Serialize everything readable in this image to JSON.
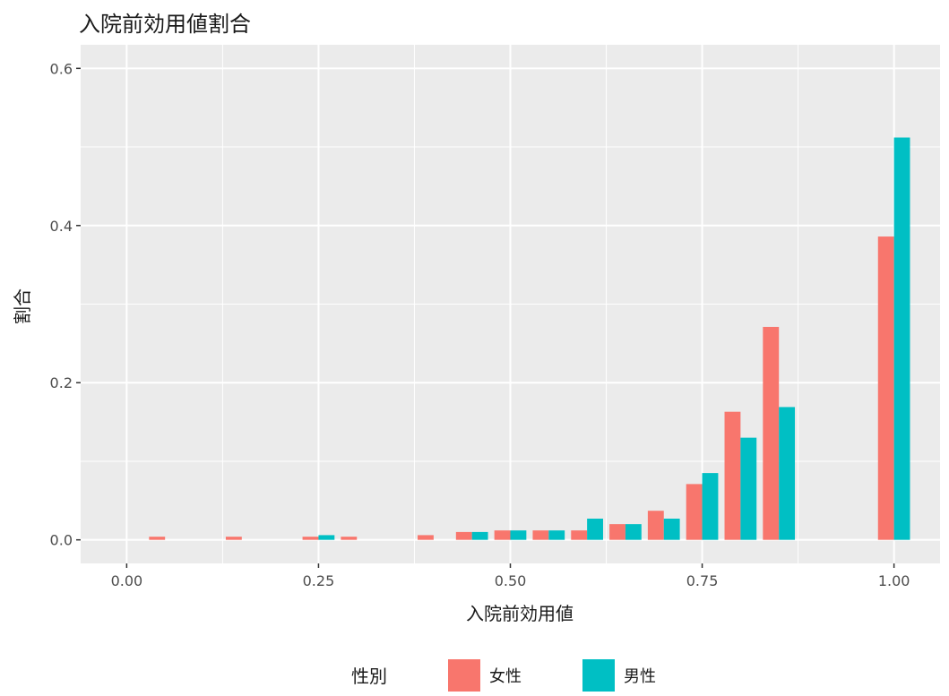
{
  "chart_data": {
    "type": "bar",
    "title": "入院前効用値割合",
    "xlabel": "入院前効用値",
    "ylabel": "割合",
    "xlim": [
      -0.06,
      1.06
    ],
    "ylim": [
      -0.03,
      0.63
    ],
    "bin_width": 0.0417,
    "x_ticks": [
      0.0,
      0.25,
      0.5,
      0.75,
      1.0
    ],
    "x_tick_labels": [
      "0.00",
      "0.25",
      "0.50",
      "0.75",
      "1.00"
    ],
    "y_ticks": [
      0.0,
      0.2,
      0.4,
      0.6
    ],
    "y_tick_labels": [
      "0.0",
      "0.2",
      "0.4",
      "0.6"
    ],
    "x": [
      0.05,
      0.15,
      0.25,
      0.3,
      0.4,
      0.45,
      0.5,
      0.55,
      0.6,
      0.65,
      0.7,
      0.75,
      0.8,
      0.85,
      1.0
    ],
    "series": [
      {
        "name": "女性",
        "color": "#F8766D",
        "values": [
          0.004,
          0.004,
          0.004,
          0.004,
          0.006,
          0.01,
          0.012,
          0.012,
          0.012,
          0.02,
          0.037,
          0.071,
          0.163,
          0.271,
          0.386
        ]
      },
      {
        "name": "男性",
        "color": "#00BFC4",
        "values": [
          0,
          0,
          0.006,
          0,
          0,
          0.01,
          0.012,
          0.012,
          0.027,
          0.02,
          0.027,
          0.085,
          0.13,
          0.169,
          0.512
        ]
      }
    ],
    "grid": true,
    "panel_background": "#EBEBEB",
    "grid_color": "#FFFFFF",
    "legend_title": "性別",
    "legend_position": "bottom"
  }
}
